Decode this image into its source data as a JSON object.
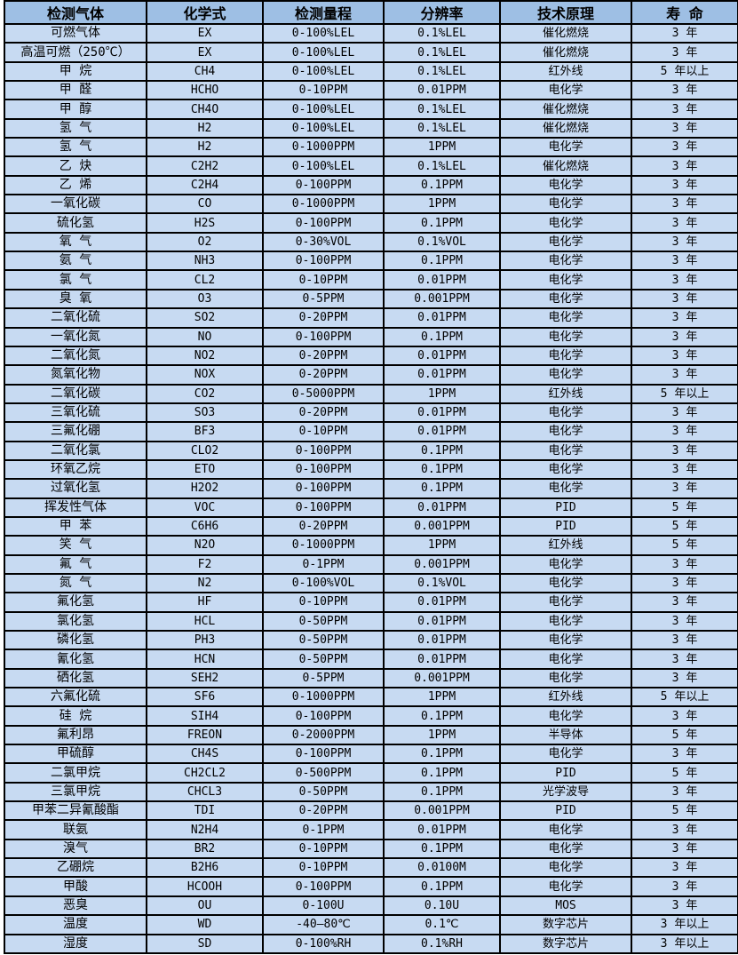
{
  "colors": {
    "header_bg": "#9ebfe4",
    "row_bg": "#c7daf2",
    "border": "#000000",
    "text": "#000000"
  },
  "table": {
    "columns": [
      "检测气体",
      "化学式",
      "检测量程",
      "分辨率",
      "技术原理",
      "寿 命"
    ],
    "rows": [
      [
        "可燃气体",
        "EX",
        "0-100%LEL",
        "0.1%LEL",
        "催化燃烧",
        "3 年"
      ],
      [
        "高温可燃（250℃）",
        "EX",
        "0-100%LEL",
        "0.1%LEL",
        "催化燃烧",
        "3 年"
      ],
      [
        "甲 烷",
        "CH4",
        "0-100%LEL",
        "0.1%LEL",
        "红外线",
        "5 年以上"
      ],
      [
        "甲 醛",
        "HCHO",
        "0-10PPM",
        "0.01PPM",
        "电化学",
        "3 年"
      ],
      [
        "甲 醇",
        "CH4O",
        "0-100%LEL",
        "0.1%LEL",
        "催化燃烧",
        "3 年"
      ],
      [
        "氢 气",
        "H2",
        "0-100%LEL",
        "0.1%LEL",
        "催化燃烧",
        "3 年"
      ],
      [
        "氢 气",
        "H2",
        "0-1000PPM",
        "1PPM",
        "电化学",
        "3 年"
      ],
      [
        "乙 炔",
        "C2H2",
        "0-100%LEL",
        "0.1%LEL",
        "催化燃烧",
        "3 年"
      ],
      [
        "乙 烯",
        "C2H4",
        "0-100PPM",
        "0.1PPM",
        "电化学",
        "3 年"
      ],
      [
        "一氧化碳",
        "CO",
        "0-1000PPM",
        "1PPM",
        "电化学",
        "3 年"
      ],
      [
        "硫化氢",
        "H2S",
        "0-100PPM",
        "0.1PPM",
        "电化学",
        "3 年"
      ],
      [
        "氧 气",
        "O2",
        "0-30%VOL",
        "0.1%VOL",
        "电化学",
        "3 年"
      ],
      [
        "氨 气",
        "NH3",
        "0-100PPM",
        "0.1PPM",
        "电化学",
        "3 年"
      ],
      [
        "氯 气",
        "CL2",
        "0-10PPM",
        "0.01PPM",
        "电化学",
        "3 年"
      ],
      [
        "臭 氧",
        "O3",
        "0-5PPM",
        "0.001PPM",
        "电化学",
        "3 年"
      ],
      [
        "二氧化硫",
        "SO2",
        "0-20PPM",
        "0.01PPM",
        "电化学",
        "3 年"
      ],
      [
        "一氧化氮",
        "NO",
        "0-100PPM",
        "0.1PPM",
        "电化学",
        "3 年"
      ],
      [
        "二氧化氮",
        "NO2",
        "0-20PPM",
        "0.01PPM",
        "电化学",
        "3 年"
      ],
      [
        "氮氧化物",
        "NOX",
        "0-20PPM",
        "0.01PPM",
        "电化学",
        "3 年"
      ],
      [
        "二氧化碳",
        "CO2",
        "0-5000PPM",
        "1PPM",
        "红外线",
        "5 年以上"
      ],
      [
        "三氧化硫",
        "SO3",
        "0-20PPM",
        "0.01PPM",
        "电化学",
        "3 年"
      ],
      [
        "三氟化硼",
        "BF3",
        "0-10PPM",
        "0.01PPM",
        "电化学",
        "3 年"
      ],
      [
        "二氧化氯",
        "CLO2",
        "0-100PPM",
        "0.1PPM",
        "电化学",
        "3 年"
      ],
      [
        "环氧乙烷",
        "ETO",
        "0-100PPM",
        "0.1PPM",
        "电化学",
        "3 年"
      ],
      [
        "过氧化氢",
        "H2O2",
        "0-100PPM",
        "0.1PPM",
        "电化学",
        "3 年"
      ],
      [
        "挥发性气体",
        "VOC",
        "0-100PPM",
        "0.01PPM",
        "PID",
        "5 年"
      ],
      [
        "甲 苯",
        "C6H6",
        "0-20PPM",
        "0.001PPM",
        "PID",
        "5 年"
      ],
      [
        "笑 气",
        "N2O",
        "0-1000PPM",
        "1PPM",
        "红外线",
        "5 年"
      ],
      [
        "氟 气",
        "F2",
        "0-1PPM",
        "0.001PPM",
        "电化学",
        "3 年"
      ],
      [
        "氮 气",
        "N2",
        "0-100%VOL",
        "0.1%VOL",
        "电化学",
        "3 年"
      ],
      [
        "氟化氢",
        "HF",
        "0-10PPM",
        "0.01PPM",
        "电化学",
        "3 年"
      ],
      [
        "氯化氢",
        "HCL",
        "0-50PPM",
        "0.01PPM",
        "电化学",
        "3 年"
      ],
      [
        "磷化氢",
        "PH3",
        "0-50PPM",
        "0.01PPM",
        "电化学",
        "3 年"
      ],
      [
        "氰化氢",
        "HCN",
        "0-50PPM",
        "0.01PPM",
        "电化学",
        "3 年"
      ],
      [
        "硒化氢",
        "SEH2",
        "0-5PPM",
        "0.001PPM",
        "电化学",
        "3 年"
      ],
      [
        "六氟化硫",
        "SF6",
        "0-1000PPM",
        "1PPM",
        "红外线",
        "5 年以上"
      ],
      [
        "硅 烷",
        "SIH4",
        "0-100PPM",
        "0.1PPM",
        "电化学",
        "3 年"
      ],
      [
        "氟利昂",
        "FREON",
        "0-2000PPM",
        "1PPM",
        "半导体",
        "5 年"
      ],
      [
        "甲硫醇",
        "CH4S",
        "0-100PPM",
        "0.1PPM",
        "电化学",
        "3 年"
      ],
      [
        "二氯甲烷",
        "CH2CL2",
        "0-500PPM",
        "0.1PPM",
        "PID",
        "5 年"
      ],
      [
        "三氯甲烷",
        "CHCL3",
        "0-50PPM",
        "0.1PPM",
        "光学波导",
        "3 年"
      ],
      [
        "甲苯二异氰酸酯",
        "TDI",
        "0-20PPM",
        "0.001PPM",
        "PID",
        "5 年"
      ],
      [
        "联氨",
        "N2H4",
        "0-1PPM",
        "0.01PPM",
        "电化学",
        "3 年"
      ],
      [
        "溴气",
        "BR2",
        "0-10PPM",
        "0.1PPM",
        "电化学",
        "3 年"
      ],
      [
        "乙硼烷",
        "B2H6",
        "0-10PPM",
        "0.0100M",
        "电化学",
        "3 年"
      ],
      [
        "甲酸",
        "HCOOH",
        "0-100PPM",
        "0.1PPM",
        "电化学",
        "3 年"
      ],
      [
        "恶臭",
        "OU",
        "0-100U",
        "0.10U",
        "MOS",
        "3 年"
      ],
      [
        "温度",
        "WD",
        "-40—80℃",
        "0.1℃",
        "数字芯片",
        "3 年以上"
      ],
      [
        "湿度",
        "SD",
        "0-100%RH",
        "0.1%RH",
        "数字芯片",
        "3 年以上"
      ]
    ]
  }
}
